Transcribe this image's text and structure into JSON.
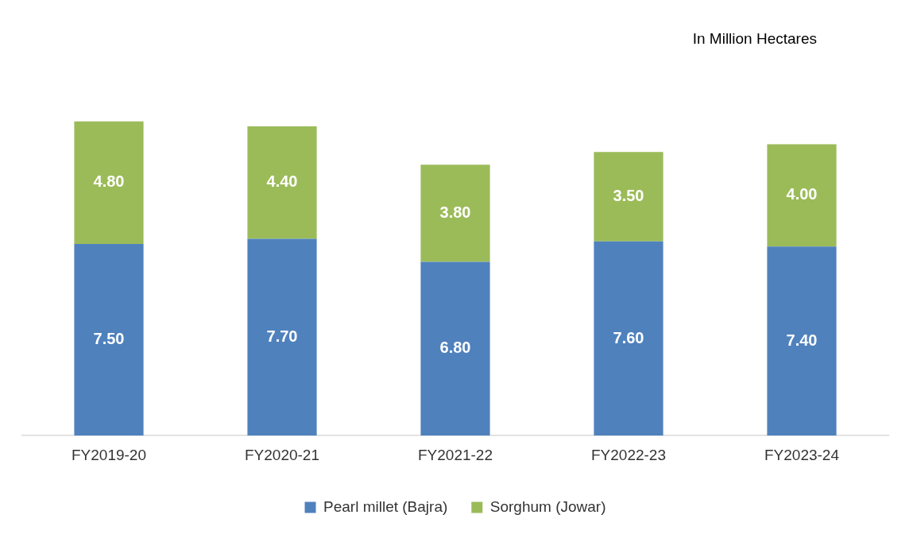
{
  "chart_data": {
    "type": "bar",
    "stacked": true,
    "categories": [
      "FY2019-20",
      "FY2020-21",
      "FY2021-22",
      "FY2022-23",
      "FY2023-24"
    ],
    "series": [
      {
        "name": "Pearl millet (Bajra)",
        "color": "#4f81bd",
        "values": [
          7.5,
          7.7,
          6.8,
          7.6,
          7.4
        ],
        "value_labels": [
          "7.50",
          "7.70",
          "6.80",
          "7.60",
          "7.40"
        ]
      },
      {
        "name": "Sorghum (Jowar)",
        "color": "#9bbb59",
        "values": [
          4.8,
          4.4,
          3.8,
          3.5,
          4.0
        ],
        "value_labels": [
          "4.80",
          "4.40",
          "3.80",
          "3.50",
          "4.00"
        ]
      }
    ],
    "annotations": [
      "In Million Hectares"
    ],
    "legend": "bottom",
    "tick_labels": "x",
    "grid": false
  }
}
